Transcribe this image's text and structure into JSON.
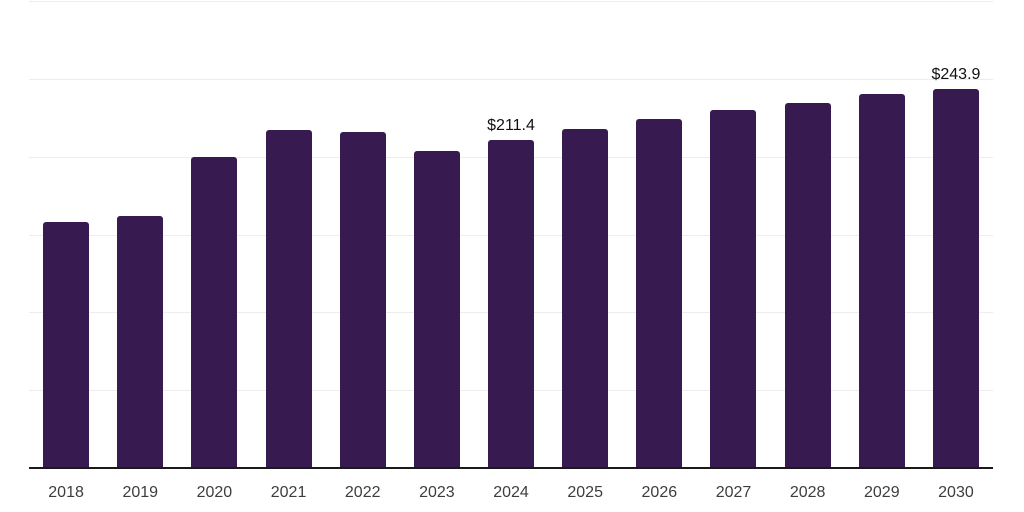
{
  "chart_data": {
    "type": "bar",
    "title": "",
    "xlabel": "",
    "ylabel": "",
    "categories": [
      "2018",
      "2019",
      "2020",
      "2021",
      "2022",
      "2023",
      "2024",
      "2025",
      "2026",
      "2027",
      "2028",
      "2029",
      "2030"
    ],
    "values": [
      158.7,
      162.5,
      200.4,
      217.8,
      216.5,
      204.3,
      211.4,
      218.4,
      224.8,
      230.6,
      235.2,
      240.9,
      243.9
    ],
    "labeled_points": [
      {
        "category": "2024",
        "label": "$211.4"
      },
      {
        "category": "2030",
        "label": "$243.9"
      }
    ],
    "value_prefix": "$",
    "ylim": [
      0,
      300
    ],
    "grid_step": 50,
    "grid": true,
    "legend": false
  },
  "style": {
    "bar_color": "#371A50",
    "gridline_color": "#EDEDED",
    "axis_color": "#1A1A1A",
    "tick_label_color": "#3D3D3D",
    "value_label_color": "#111111",
    "background_color": "#FFFFFF"
  }
}
